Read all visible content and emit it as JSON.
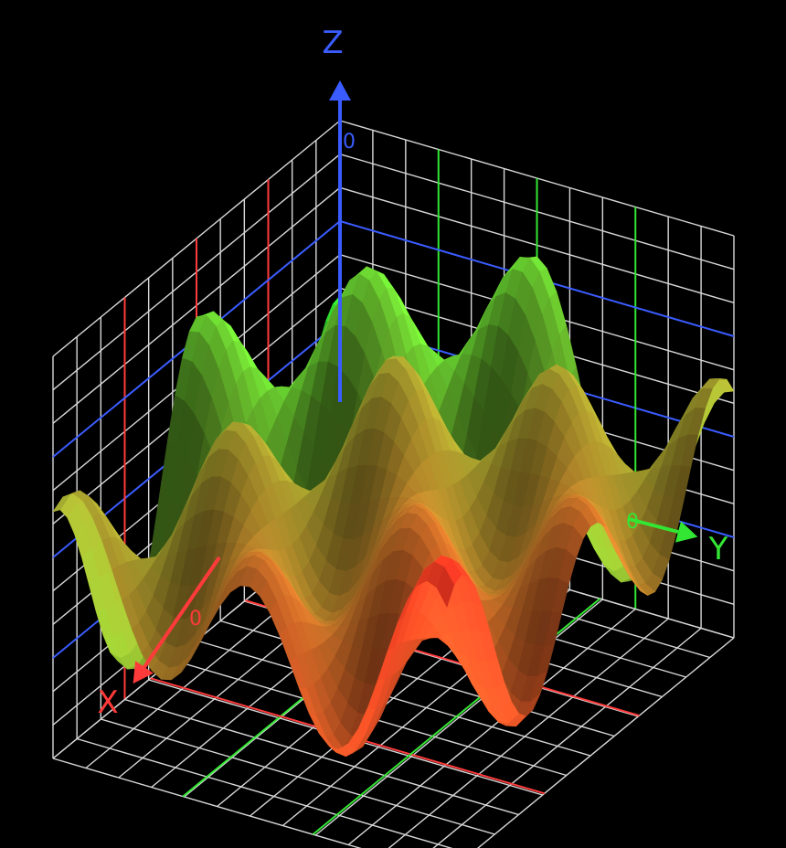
{
  "chart_data": {
    "type": "surface",
    "title": "",
    "axes": {
      "x": {
        "label": "X",
        "origin_tick": "0",
        "color": "#ff3a3a"
      },
      "y": {
        "label": "Y",
        "origin_tick": "0",
        "color": "#33e633"
      },
      "z": {
        "label": "Z",
        "origin_tick": "0",
        "color": "#3a5cff"
      }
    },
    "x_range": [
      -3,
      3
    ],
    "y_range": [
      -3,
      3
    ],
    "z_range": [
      0,
      1
    ],
    "grid": true,
    "grid_color": "#d8d8d8",
    "surface_colormap": [
      "#33ff33",
      "#ff3322"
    ],
    "background_color": "#000000",
    "surface_shape": "wavy ridges, higher towards the +x/+y corner, peaks around z = 0.9"
  }
}
